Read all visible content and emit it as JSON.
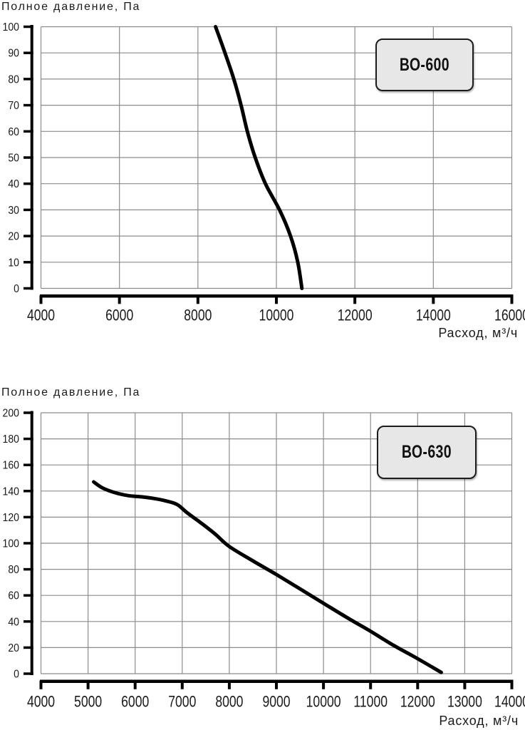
{
  "style": {
    "background": "#ffffff",
    "text_color": "#1a1a1a",
    "grid_color": "#8c8c8c",
    "axis_color": "#000000",
    "badge_bg": "#e7e7e7",
    "badge_border": "#1c1c1c"
  },
  "chart_data": [
    {
      "type": "line",
      "title": "Полное давление, Па",
      "ylabel": "Полное давление, Па",
      "xlabel": "Расход, м³/ч",
      "series": "ВО-600",
      "grid": true,
      "legend_position": "top-right-box",
      "xlim": [
        4000,
        16000
      ],
      "ylim": [
        0,
        100
      ],
      "xticks": [
        4000,
        6000,
        8000,
        10000,
        12000,
        14000,
        16000
      ],
      "yticks": [
        0,
        10,
        20,
        30,
        40,
        50,
        60,
        70,
        80,
        90,
        100
      ],
      "line_color": "#000000",
      "points": [
        [
          8450,
          100
        ],
        [
          8690,
          90
        ],
        [
          8915,
          80
        ],
        [
          9100,
          70
        ],
        [
          9260,
          60
        ],
        [
          9460,
          50
        ],
        [
          9720,
          40
        ],
        [
          10080,
          30
        ],
        [
          10360,
          20
        ],
        [
          10545,
          10
        ],
        [
          10650,
          0
        ]
      ]
    },
    {
      "type": "line",
      "title": "Полное давление, Па",
      "ylabel": "Полное давление, Па",
      "xlabel": "Расход, м³/ч",
      "series": "ВО-630",
      "grid": true,
      "legend_position": "top-right-box",
      "xlim": [
        4000,
        14000
      ],
      "ylim": [
        0,
        200
      ],
      "xticks": [
        4000,
        5000,
        6000,
        7000,
        8000,
        9000,
        10000,
        11000,
        12000,
        13000,
        14000
      ],
      "yticks": [
        0,
        20,
        40,
        60,
        80,
        100,
        120,
        140,
        160,
        180,
        200
      ],
      "line_color": "#000000",
      "points": [
        [
          5120,
          147
        ],
        [
          5300,
          142.5
        ],
        [
          5550,
          139
        ],
        [
          5850,
          136.5
        ],
        [
          6150,
          135.5
        ],
        [
          6450,
          134
        ],
        [
          6700,
          132
        ],
        [
          6900,
          129.5
        ],
        [
          7100,
          123.5
        ],
        [
          7400,
          115.5
        ],
        [
          7700,
          107
        ],
        [
          8000,
          97.5
        ],
        [
          8500,
          86.5
        ],
        [
          9000,
          76
        ],
        [
          9500,
          65
        ],
        [
          10000,
          54
        ],
        [
          10500,
          43
        ],
        [
          11000,
          32.5
        ],
        [
          11500,
          21.5
        ],
        [
          12000,
          11.5
        ],
        [
          12500,
          1
        ]
      ]
    }
  ]
}
